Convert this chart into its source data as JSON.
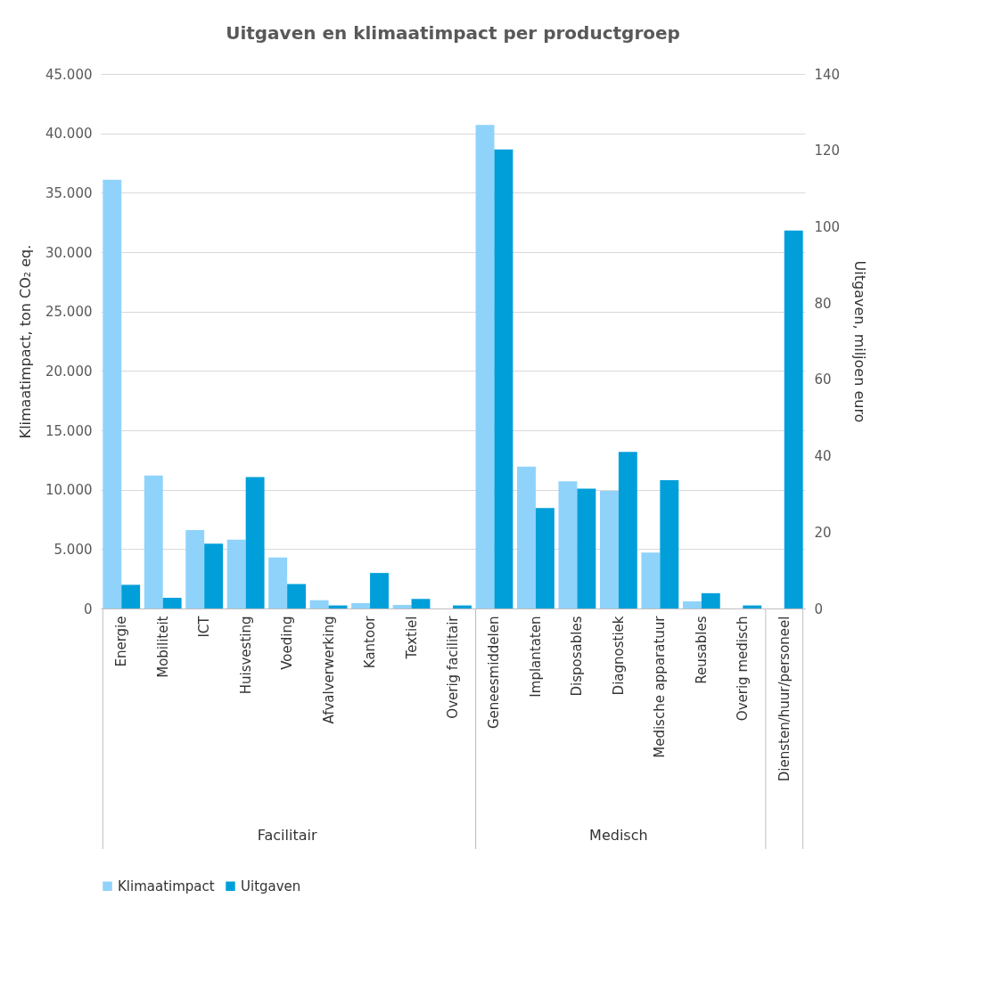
{
  "chart_data": {
    "type": "bar",
    "title": "Uitgaven en klimaatimpact per productgroep",
    "ylabel": "Klimaatimpact, ton CO₂ eq.",
    "y2label": "Uitgaven, miljoen euro",
    "categories": [
      "Energie",
      "Mobiliteit",
      "ICT",
      "Huisvesting",
      "Voeding",
      "Afvalverwerking",
      "Kantoor",
      "Textiel",
      "Overig facilitair",
      "Geneesmiddelen",
      "Implantaten",
      "Disposables",
      "Diagnostiek",
      "Medische apparatuur",
      "Reusables",
      "Overig medisch",
      "Diensten/huur/personeel"
    ],
    "series": [
      {
        "name": "Klimaatimpact",
        "color": "#8fd3fb",
        "values": [
          36100,
          11200,
          6600,
          5800,
          4300,
          700,
          450,
          300,
          0,
          40700,
          11950,
          10700,
          9900,
          4700,
          600,
          0,
          0
        ]
      },
      {
        "name": "Uitgaven",
        "color": "#009fda",
        "axis": "y2",
        "values": [
          6.2,
          2.8,
          17.0,
          34.4,
          6.4,
          0.8,
          9.3,
          2.5,
          0.8,
          120.2,
          26.3,
          31.4,
          41.0,
          33.6,
          4.0,
          0.8,
          99.0
        ]
      }
    ],
    "ylim": [
      0,
      45000
    ],
    "yticks": [
      0,
      {
        "value": 5000,
        "label": "5.000"
      },
      {
        "value": 10000,
        "label": "10.000"
      },
      {
        "value": 15000,
        "label": "15.000"
      },
      {
        "value": 20000,
        "label": "20.000"
      },
      {
        "value": 25000,
        "label": "25.000"
      },
      {
        "value": 30000,
        "label": "30.000"
      },
      {
        "value": 35000,
        "label": "35.000"
      },
      {
        "value": 40000,
        "label": "40.000"
      },
      {
        "value": 45000,
        "label": "45.000"
      }
    ],
    "y2lim": [
      0,
      140
    ],
    "y2ticks": [
      0,
      20,
      40,
      60,
      80,
      100,
      120,
      140
    ],
    "annotations": [
      "Facilitair",
      "Medisch"
    ],
    "grid": "y",
    "legend": "bottom"
  }
}
